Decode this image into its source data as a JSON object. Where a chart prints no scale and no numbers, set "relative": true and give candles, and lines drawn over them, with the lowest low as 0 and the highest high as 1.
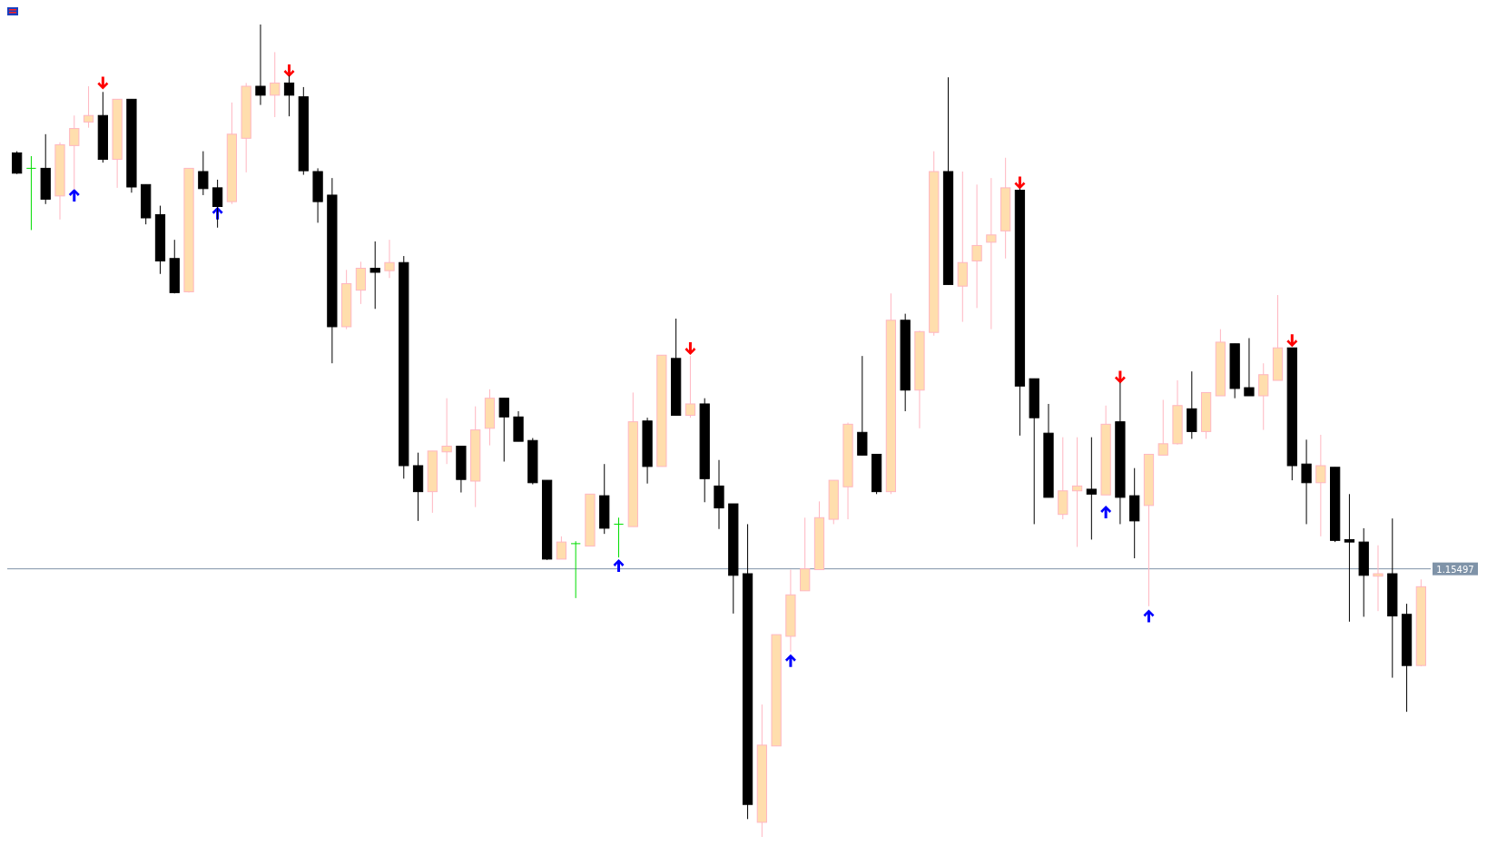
{
  "chart_data": {
    "type": "candlestick",
    "relative": true,
    "categories": [
      null,
      null,
      null,
      null,
      null,
      null,
      null,
      null,
      null,
      null,
      null,
      null,
      null,
      null,
      null,
      null,
      null,
      null,
      null,
      null,
      null,
      null,
      null,
      null,
      null,
      null,
      null,
      null,
      null,
      null,
      null,
      null,
      null,
      null,
      null,
      null,
      null,
      null,
      null,
      null,
      null,
      null,
      null,
      null,
      null,
      null,
      null,
      null,
      null,
      null,
      null,
      null,
      null,
      null,
      null,
      null,
      null,
      null,
      null,
      null,
      null,
      null,
      null,
      null,
      null,
      null,
      null,
      null,
      null,
      null,
      null,
      null,
      null,
      null,
      null,
      null,
      null,
      null,
      null,
      null,
      null,
      null,
      null,
      null,
      null,
      null,
      null,
      null,
      null,
      null,
      null,
      null,
      null,
      null,
      null,
      null,
      null,
      null,
      null
    ],
    "ohlc": [
      [
        0.842,
        0.844,
        0.816,
        0.817
      ],
      [
        0.823,
        0.838,
        0.747,
        0.823
      ],
      [
        0.823,
        0.865,
        0.779,
        0.785
      ],
      [
        0.789,
        0.855,
        0.76,
        0.852
      ],
      [
        0.851,
        0.888,
        0.797,
        0.872
      ],
      [
        0.88,
        0.924,
        0.873,
        0.888
      ],
      [
        0.888,
        0.917,
        0.83,
        0.834
      ],
      [
        0.834,
        0.908,
        0.799,
        0.908
      ],
      [
        0.908,
        0.908,
        0.793,
        0.8
      ],
      [
        0.803,
        0.803,
        0.754,
        0.762
      ],
      [
        0.766,
        0.777,
        0.693,
        0.709
      ],
      [
        0.712,
        0.735,
        0.669,
        0.67
      ],
      [
        0.671,
        0.823,
        0.67,
        0.823
      ],
      [
        0.819,
        0.844,
        0.79,
        0.798
      ],
      [
        0.799,
        0.809,
        0.75,
        0.776
      ],
      [
        0.782,
        0.904,
        0.779,
        0.865
      ],
      [
        0.86,
        0.928,
        0.818,
        0.924
      ],
      [
        0.924,
        1,
        0.901,
        0.913
      ],
      [
        0.913,
        0.966,
        0.886,
        0.928
      ],
      [
        0.928,
        0.937,
        0.887,
        0.913
      ],
      [
        0.911,
        0.923,
        0.815,
        0.82
      ],
      [
        0.819,
        0.823,
        0.756,
        0.782
      ],
      [
        0.79,
        0.811,
        0.583,
        0.628
      ],
      [
        0.628,
        0.698,
        0.625,
        0.681
      ],
      [
        0.673,
        0.708,
        0.656,
        0.7
      ],
      [
        0.7,
        0.733,
        0.65,
        0.695
      ],
      [
        0.697,
        0.735,
        0.688,
        0.707
      ],
      [
        0.707,
        0.715,
        0.441,
        0.457
      ],
      [
        0.457,
        0.473,
        0.389,
        0.425
      ],
      [
        0.425,
        0.475,
        0.399,
        0.475
      ],
      [
        0.474,
        0.54,
        0.459,
        0.481
      ],
      [
        0.481,
        0.481,
        0.424,
        0.44
      ],
      [
        0.438,
        0.53,
        0.406,
        0.501
      ],
      [
        0.503,
        0.551,
        0.482,
        0.54
      ],
      [
        0.54,
        0.54,
        0.462,
        0.517
      ],
      [
        0.517,
        0.524,
        0.487,
        0.487
      ],
      [
        0.488,
        0.491,
        0.434,
        0.436
      ],
      [
        0.439,
        0.439,
        0.341,
        0.342
      ],
      [
        0.342,
        0.37,
        0.342,
        0.363
      ],
      [
        0.361,
        0.364,
        0.294,
        0.361
      ],
      [
        0.358,
        0.422,
        0.358,
        0.422
      ],
      [
        0.42,
        0.459,
        0.373,
        0.38
      ],
      [
        0.385,
        0.393,
        0.344,
        0.385
      ],
      [
        0.382,
        0.547,
        0.382,
        0.511
      ],
      [
        0.512,
        0.516,
        0.435,
        0.456
      ],
      [
        0.456,
        0.593,
        0.456,
        0.593
      ],
      [
        0.589,
        0.638,
        0.519,
        0.519
      ],
      [
        0.519,
        0.592,
        0.516,
        0.533
      ],
      [
        0.533,
        0.54,
        0.412,
        0.441
      ],
      [
        0.432,
        0.464,
        0.379,
        0.405
      ],
      [
        0.41,
        0.41,
        0.275,
        0.322
      ],
      [
        0.324,
        0.385,
        0.022,
        0.04
      ],
      [
        0.018,
        0.163,
        0,
        0.113
      ],
      [
        0.112,
        0.249,
        0.112,
        0.249
      ],
      [
        0.247,
        0.329,
        0.228,
        0.298
      ],
      [
        0.303,
        0.393,
        0.303,
        0.33
      ],
      [
        0.329,
        0.413,
        0.329,
        0.393
      ],
      [
        0.391,
        0.439,
        0.385,
        0.439
      ],
      [
        0.431,
        0.51,
        0.391,
        0.508
      ],
      [
        0.498,
        0.592,
        0.47,
        0.47
      ],
      [
        0.471,
        0.471,
        0.422,
        0.425
      ],
      [
        0.425,
        0.669,
        0.422,
        0.636
      ],
      [
        0.636,
        0.644,
        0.524,
        0.55
      ],
      [
        0.55,
        0.623,
        0.503,
        0.622
      ],
      [
        0.621,
        0.844,
        0.617,
        0.819
      ],
      [
        0.819,
        0.935,
        0.68,
        0.68
      ],
      [
        0.678,
        0.819,
        0.634,
        0.707
      ],
      [
        0.709,
        0.803,
        0.651,
        0.728
      ],
      [
        0.732,
        0.811,
        0.625,
        0.741
      ],
      [
        0.746,
        0.836,
        0.712,
        0.799
      ],
      [
        0.796,
        0.798,
        0.494,
        0.555
      ],
      [
        0.564,
        0.564,
        0.385,
        0.516
      ],
      [
        0.497,
        0.533,
        0.418,
        0.418
      ],
      [
        0.397,
        0.492,
        0.391,
        0.426
      ],
      [
        0.426,
        0.492,
        0.357,
        0.432
      ],
      [
        0.428,
        0.492,
        0.366,
        0.422
      ],
      [
        0.421,
        0.531,
        0.421,
        0.508
      ],
      [
        0.511,
        0.559,
        0.385,
        0.418
      ],
      [
        0.42,
        0.454,
        0.343,
        0.389
      ],
      [
        0.408,
        0.471,
        0.284,
        0.471
      ],
      [
        0.47,
        0.538,
        0.47,
        0.484
      ],
      [
        0.484,
        0.562,
        0.483,
        0.531
      ],
      [
        0.527,
        0.573,
        0.49,
        0.499
      ],
      [
        0.499,
        0.547,
        0.49,
        0.547
      ],
      [
        0.543,
        0.625,
        0.543,
        0.609
      ],
      [
        0.607,
        0.607,
        0.54,
        0.552
      ],
      [
        0.553,
        0.614,
        0.543,
        0.543
      ],
      [
        0.543,
        0.583,
        0.501,
        0.569
      ],
      [
        0.562,
        0.667,
        0.562,
        0.602
      ],
      [
        0.602,
        0.602,
        0.439,
        0.457
      ],
      [
        0.459,
        0.489,
        0.385,
        0.436
      ],
      [
        0.436,
        0.495,
        0.37,
        0.457
      ],
      [
        0.455,
        0.455,
        0.363,
        0.365
      ],
      [
        0.366,
        0.422,
        0.265,
        0.363
      ],
      [
        0.363,
        0.38,
        0.271,
        0.322
      ],
      [
        0.321,
        0.359,
        0.278,
        0.324
      ],
      [
        0.324,
        0.392,
        0.196,
        0.272
      ],
      [
        0.274,
        0.287,
        0.154,
        0.211
      ],
      [
        0.211,
        0.317,
        0.21,
        0.308
      ]
    ],
    "colors": [
      "#000000",
      "#00dd00",
      "#000000",
      "#ffdead",
      "#ffdead",
      "#ffdead",
      "#000000",
      "#ffdead",
      "#000000",
      "#000000",
      "#000000",
      "#000000",
      "#ffdead",
      "#000000",
      "#000000",
      "#ffdead",
      "#ffdead",
      "#000000",
      "#ffdead",
      "#000000",
      "#000000",
      "#000000",
      "#000000",
      "#ffdead",
      "#ffdead",
      "#000000",
      "#ffdead",
      "#000000",
      "#000000",
      "#ffdead",
      "#ffdead",
      "#000000",
      "#ffdead",
      "#ffdead",
      "#000000",
      "#000000",
      "#000000",
      "#000000",
      "#ffdead",
      "#00dd00",
      "#ffdead",
      "#000000",
      "#00dd00",
      "#ffdead",
      "#000000",
      "#ffdead",
      "#000000",
      "#ffdead",
      "#000000",
      "#000000",
      "#000000",
      "#000000",
      "#ffdead",
      "#ffdead",
      "#ffdead",
      "#ffdead",
      "#ffdead",
      "#ffdead",
      "#ffdead",
      "#000000",
      "#000000",
      "#ffdead",
      "#000000",
      "#ffdead",
      "#ffdead",
      "#000000",
      "#ffdead",
      "#ffdead",
      "#ffdead",
      "#ffdead",
      "#000000",
      "#000000",
      "#000000",
      "#ffdead",
      "#ffdead",
      "#000000",
      "#ffdead",
      "#000000",
      "#000000",
      "#ffdead",
      "#ffdead",
      "#ffdead",
      "#000000",
      "#ffdead",
      "#ffdead",
      "#000000",
      "#000000",
      "#ffdead",
      "#ffdead",
      "#000000",
      "#000000",
      "#ffdead",
      "#000000",
      "#000000",
      "#000000",
      "#ffdead",
      "#000000",
      "#000000",
      "#ffdead"
    ],
    "series": [
      {
        "type": "scatter",
        "color": "#0000ff",
        "values": [
          null,
          null,
          null,
          null,
          0.79,
          null,
          null,
          null,
          null,
          null,
          null,
          null,
          null,
          null,
          0.768,
          null,
          null,
          null,
          null,
          null,
          null,
          null,
          null,
          null,
          null,
          null,
          null,
          null,
          null,
          null,
          null,
          null,
          null,
          null,
          null,
          null,
          null,
          null,
          null,
          null,
          null,
          null,
          0.334,
          null,
          null,
          null,
          null,
          null,
          null,
          null,
          null,
          null,
          null,
          null,
          0.217,
          null,
          null,
          null,
          null,
          null,
          null,
          null,
          null,
          null,
          null,
          null,
          null,
          null,
          null,
          null,
          null,
          null,
          null,
          null,
          null,
          null,
          0.4,
          null,
          null,
          0.272,
          null,
          null,
          null,
          null,
          null,
          null,
          null,
          null,
          null,
          null,
          null,
          null,
          null,
          null,
          null,
          null,
          null,
          null,
          null
        ]
      },
      {
        "type": "scatter",
        "color": "#ff0000",
        "values": [
          null,
          null,
          null,
          null,
          null,
          null,
          0.928,
          null,
          null,
          null,
          null,
          null,
          null,
          null,
          null,
          null,
          null,
          null,
          null,
          0.943,
          null,
          null,
          null,
          null,
          null,
          null,
          null,
          null,
          null,
          null,
          null,
          null,
          null,
          null,
          null,
          null,
          null,
          null,
          null,
          null,
          null,
          null,
          null,
          null,
          null,
          null,
          null,
          0.601,
          null,
          null,
          null,
          null,
          null,
          null,
          null,
          null,
          null,
          null,
          null,
          null,
          null,
          null,
          null,
          null,
          null,
          null,
          null,
          null,
          null,
          null,
          0.805,
          null,
          null,
          null,
          null,
          null,
          null,
          0.566,
          null,
          null,
          null,
          null,
          null,
          null,
          null,
          null,
          null,
          null,
          null,
          0.611,
          null,
          null,
          null,
          null,
          null,
          null,
          null,
          null,
          null
        ]
      }
    ],
    "ref_lines": [
      {
        "axis": "y",
        "value": 0.33,
        "color": "#7f93a8"
      }
    ],
    "annotations": [
      "1.15497"
    ]
  }
}
